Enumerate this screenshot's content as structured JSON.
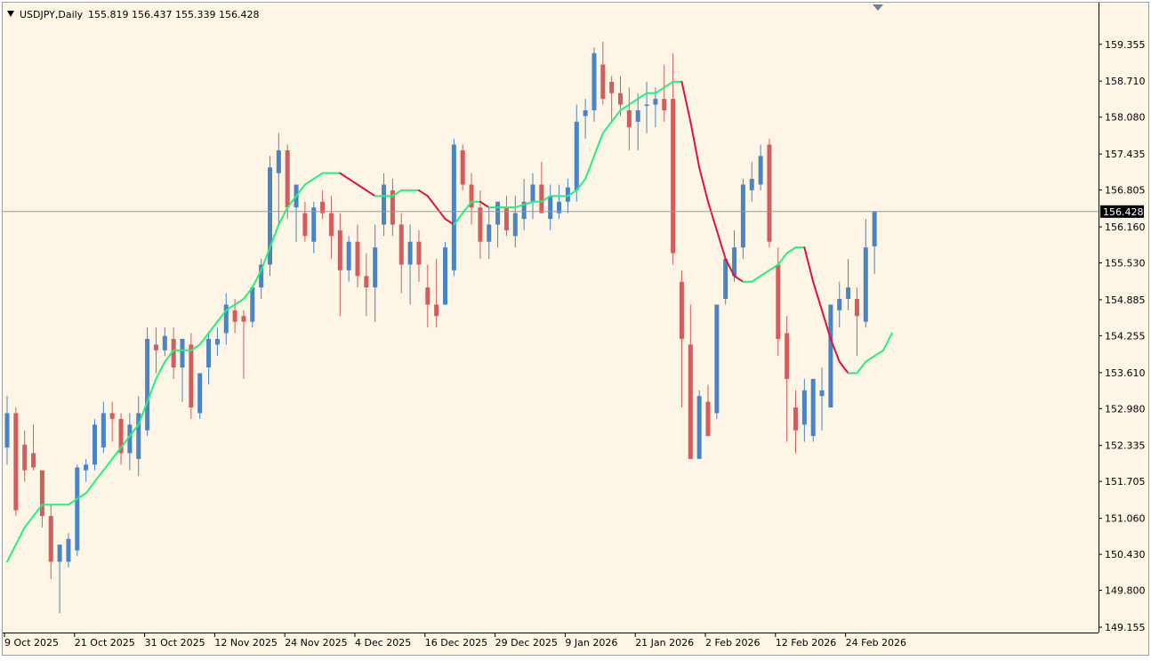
{
  "header": {
    "symbol_label": "USDJPY,Daily",
    "ohlc_label": "155.819 156.437 155.339 156.428"
  },
  "colors": {
    "background": "#fdf5e6",
    "bull": "#4a84c4",
    "bear": "#d45c5c",
    "ma_up": "#23f07a",
    "ma_down": "#dc143c",
    "price_line": "#8a9bb0",
    "price_tag": "#000000"
  },
  "chart_data": {
    "type": "candlestick",
    "title": "USDJPY,Daily",
    "ylim": [
      149.155,
      159.99
    ],
    "y_ticks": [
      "159.355",
      "158.710",
      "158.080",
      "157.435",
      "156.805",
      "156.160",
      "155.530",
      "154.885",
      "154.255",
      "153.610",
      "152.980",
      "152.335",
      "151.705",
      "151.060",
      "150.430",
      "149.800",
      "149.155"
    ],
    "x_ticks": [
      {
        "index": 0,
        "label": "9 Oct 2025"
      },
      {
        "index": 8,
        "label": "21 Oct 2025"
      },
      {
        "index": 16,
        "label": "31 Oct 2025"
      },
      {
        "index": 24,
        "label": "12 Nov 2025"
      },
      {
        "index": 32,
        "label": "24 Nov 2025"
      },
      {
        "index": 40,
        "label": "4 Dec 2025"
      },
      {
        "index": 48,
        "label": "16 Dec 2025"
      },
      {
        "index": 56,
        "label": "29 Dec 2025"
      },
      {
        "index": 64,
        "label": "9 Jan 2026"
      },
      {
        "index": 72,
        "label": "21 Jan 2026"
      },
      {
        "index": 80,
        "label": "2 Feb 2026"
      },
      {
        "index": 88,
        "label": "12 Feb 2026"
      },
      {
        "index": 96,
        "label": "24 Feb 2026"
      }
    ],
    "current_price": "156.428",
    "candles": [
      {
        "o": 152.3,
        "h": 153.2,
        "l": 152.0,
        "c": 152.9
      },
      {
        "o": 152.9,
        "h": 153.0,
        "l": 151.1,
        "c": 151.2
      },
      {
        "o": 152.35,
        "h": 152.6,
        "l": 151.7,
        "c": 151.9
      },
      {
        "o": 152.2,
        "h": 152.7,
        "l": 151.9,
        "c": 151.95
      },
      {
        "o": 151.9,
        "h": 151.9,
        "l": 150.9,
        "c": 151.1
      },
      {
        "o": 151.1,
        "h": 151.3,
        "l": 150.0,
        "c": 150.3
      },
      {
        "o": 150.3,
        "h": 150.5,
        "l": 149.4,
        "c": 150.6
      },
      {
        "o": 150.3,
        "h": 150.8,
        "l": 150.2,
        "c": 150.7
      },
      {
        "o": 150.5,
        "h": 152.0,
        "l": 150.4,
        "c": 151.95
      },
      {
        "o": 151.9,
        "h": 152.1,
        "l": 151.7,
        "c": 152.0
      },
      {
        "o": 152.0,
        "h": 152.8,
        "l": 151.9,
        "c": 152.7
      },
      {
        "o": 152.3,
        "h": 153.1,
        "l": 152.2,
        "c": 152.9
      },
      {
        "o": 152.9,
        "h": 153.1,
        "l": 152.4,
        "c": 152.8
      },
      {
        "o": 152.8,
        "h": 152.9,
        "l": 152.0,
        "c": 152.2
      },
      {
        "o": 152.2,
        "h": 152.9,
        "l": 151.9,
        "c": 152.7
      },
      {
        "o": 152.1,
        "h": 153.2,
        "l": 151.8,
        "c": 152.9
      },
      {
        "o": 152.6,
        "h": 154.4,
        "l": 152.5,
        "c": 154.2
      },
      {
        "o": 154.1,
        "h": 154.4,
        "l": 153.6,
        "c": 154.0
      },
      {
        "o": 154.0,
        "h": 154.4,
        "l": 153.9,
        "c": 154.25
      },
      {
        "o": 154.2,
        "h": 154.4,
        "l": 153.5,
        "c": 153.7
      },
      {
        "o": 153.7,
        "h": 154.1,
        "l": 153.1,
        "c": 154.2
      },
      {
        "o": 154.1,
        "h": 154.3,
        "l": 152.8,
        "c": 153.0
      },
      {
        "o": 152.9,
        "h": 153.5,
        "l": 152.8,
        "c": 153.6
      },
      {
        "o": 153.7,
        "h": 154.3,
        "l": 153.4,
        "c": 154.2
      },
      {
        "o": 154.1,
        "h": 154.4,
        "l": 153.9,
        "c": 154.2
      },
      {
        "o": 154.3,
        "h": 155.0,
        "l": 154.1,
        "c": 154.8
      },
      {
        "o": 154.7,
        "h": 154.9,
        "l": 154.3,
        "c": 154.5
      },
      {
        "o": 154.6,
        "h": 154.7,
        "l": 153.5,
        "c": 154.5
      },
      {
        "o": 154.5,
        "h": 155.1,
        "l": 154.4,
        "c": 155.1
      },
      {
        "o": 155.1,
        "h": 155.6,
        "l": 154.9,
        "c": 155.5
      },
      {
        "o": 155.5,
        "h": 157.4,
        "l": 155.3,
        "c": 157.2
      },
      {
        "o": 157.1,
        "h": 157.8,
        "l": 156.2,
        "c": 157.5
      },
      {
        "o": 157.5,
        "h": 157.6,
        "l": 156.3,
        "c": 156.5
      },
      {
        "o": 156.5,
        "h": 156.9,
        "l": 155.9,
        "c": 156.9
      },
      {
        "o": 156.4,
        "h": 156.6,
        "l": 155.9,
        "c": 156.0
      },
      {
        "o": 155.9,
        "h": 156.6,
        "l": 155.7,
        "c": 156.5
      },
      {
        "o": 156.6,
        "h": 156.8,
        "l": 156.3,
        "c": 156.4
      },
      {
        "o": 156.4,
        "h": 156.7,
        "l": 155.6,
        "c": 156.0
      },
      {
        "o": 156.1,
        "h": 156.4,
        "l": 154.6,
        "c": 155.4
      },
      {
        "o": 155.4,
        "h": 156.0,
        "l": 155.2,
        "c": 155.9
      },
      {
        "o": 155.9,
        "h": 156.2,
        "l": 155.1,
        "c": 155.3
      },
      {
        "o": 155.3,
        "h": 155.7,
        "l": 154.6,
        "c": 155.1
      },
      {
        "o": 155.1,
        "h": 156.2,
        "l": 154.5,
        "c": 155.8
      },
      {
        "o": 156.2,
        "h": 157.1,
        "l": 156.0,
        "c": 156.9
      },
      {
        "o": 156.8,
        "h": 157.0,
        "l": 156.0,
        "c": 156.2
      },
      {
        "o": 156.2,
        "h": 156.4,
        "l": 155.0,
        "c": 155.5
      },
      {
        "o": 155.5,
        "h": 156.2,
        "l": 154.8,
        "c": 155.9
      },
      {
        "o": 155.9,
        "h": 156.1,
        "l": 155.2,
        "c": 155.5
      },
      {
        "o": 155.1,
        "h": 155.5,
        "l": 154.4,
        "c": 154.8
      },
      {
        "o": 154.8,
        "h": 155.6,
        "l": 154.4,
        "c": 154.6
      },
      {
        "o": 154.8,
        "h": 155.9,
        "l": 154.8,
        "c": 155.8
      },
      {
        "o": 155.4,
        "h": 157.7,
        "l": 155.3,
        "c": 157.6
      },
      {
        "o": 157.5,
        "h": 157.6,
        "l": 156.8,
        "c": 156.9
      },
      {
        "o": 156.9,
        "h": 157.1,
        "l": 156.2,
        "c": 156.5
      },
      {
        "o": 156.5,
        "h": 156.8,
        "l": 155.6,
        "c": 155.9
      },
      {
        "o": 155.9,
        "h": 156.5,
        "l": 155.6,
        "c": 156.2
      },
      {
        "o": 156.2,
        "h": 156.6,
        "l": 155.8,
        "c": 156.6
      },
      {
        "o": 156.5,
        "h": 156.7,
        "l": 156.0,
        "c": 156.1
      },
      {
        "o": 156.0,
        "h": 156.7,
        "l": 155.8,
        "c": 156.4
      },
      {
        "o": 156.3,
        "h": 157.0,
        "l": 156.1,
        "c": 156.6
      },
      {
        "o": 156.6,
        "h": 157.1,
        "l": 156.3,
        "c": 156.9
      },
      {
        "o": 156.9,
        "h": 157.3,
        "l": 156.4,
        "c": 156.4
      },
      {
        "o": 156.3,
        "h": 156.9,
        "l": 156.1,
        "c": 156.7
      },
      {
        "o": 156.4,
        "h": 156.9,
        "l": 156.3,
        "c": 156.6
      },
      {
        "o": 156.6,
        "h": 157.0,
        "l": 156.4,
        "c": 156.85
      },
      {
        "o": 156.8,
        "h": 158.3,
        "l": 156.6,
        "c": 158.0
      },
      {
        "o": 158.1,
        "h": 158.4,
        "l": 157.7,
        "c": 158.2
      },
      {
        "o": 158.2,
        "h": 159.3,
        "l": 158.0,
        "c": 159.2
      },
      {
        "o": 159.0,
        "h": 159.4,
        "l": 158.3,
        "c": 158.4
      },
      {
        "o": 158.7,
        "h": 158.8,
        "l": 158.0,
        "c": 158.5
      },
      {
        "o": 158.5,
        "h": 158.8,
        "l": 158.1,
        "c": 158.3
      },
      {
        "o": 158.2,
        "h": 158.6,
        "l": 157.5,
        "c": 157.9
      },
      {
        "o": 158.0,
        "h": 158.5,
        "l": 157.5,
        "c": 158.2
      },
      {
        "o": 158.3,
        "h": 158.7,
        "l": 157.8,
        "c": 158.3
      },
      {
        "o": 158.3,
        "h": 158.6,
        "l": 157.9,
        "c": 158.4
      },
      {
        "o": 158.4,
        "h": 159.0,
        "l": 158.0,
        "c": 158.2
      },
      {
        "o": 158.4,
        "h": 159.2,
        "l": 155.5,
        "c": 155.7
      },
      {
        "o": 155.2,
        "h": 155.4,
        "l": 153.0,
        "c": 154.2
      },
      {
        "o": 154.1,
        "h": 154.8,
        "l": 152.1,
        "c": 152.1
      },
      {
        "o": 152.1,
        "h": 153.3,
        "l": 152.1,
        "c": 153.2
      },
      {
        "o": 153.1,
        "h": 153.4,
        "l": 152.5,
        "c": 152.5
      },
      {
        "o": 152.9,
        "h": 154.8,
        "l": 152.8,
        "c": 154.8
      },
      {
        "o": 154.9,
        "h": 155.6,
        "l": 154.8,
        "c": 155.6
      },
      {
        "o": 155.3,
        "h": 156.1,
        "l": 155.2,
        "c": 155.8
      },
      {
        "o": 155.8,
        "h": 157.0,
        "l": 155.6,
        "c": 156.9
      },
      {
        "o": 156.8,
        "h": 157.3,
        "l": 156.6,
        "c": 157.0
      },
      {
        "o": 156.9,
        "h": 157.6,
        "l": 156.8,
        "c": 157.4
      },
      {
        "o": 157.6,
        "h": 157.7,
        "l": 155.8,
        "c": 155.9
      },
      {
        "o": 155.5,
        "h": 155.8,
        "l": 153.9,
        "c": 154.2
      },
      {
        "o": 154.3,
        "h": 154.6,
        "l": 152.4,
        "c": 153.5
      },
      {
        "o": 153.0,
        "h": 153.3,
        "l": 152.2,
        "c": 152.6
      },
      {
        "o": 152.7,
        "h": 153.5,
        "l": 152.4,
        "c": 153.3
      },
      {
        "o": 152.5,
        "h": 153.5,
        "l": 152.4,
        "c": 153.5
      },
      {
        "o": 153.2,
        "h": 153.7,
        "l": 152.6,
        "c": 153.3
      },
      {
        "o": 153.0,
        "h": 154.8,
        "l": 153.0,
        "c": 154.8
      },
      {
        "o": 154.7,
        "h": 155.2,
        "l": 154.4,
        "c": 154.9
      },
      {
        "o": 154.9,
        "h": 155.6,
        "l": 154.7,
        "c": 155.1
      },
      {
        "o": 154.9,
        "h": 155.1,
        "l": 153.9,
        "c": 154.6
      },
      {
        "o": 154.5,
        "h": 156.3,
        "l": 154.4,
        "c": 155.8
      },
      {
        "o": 155.819,
        "h": 156.437,
        "l": 155.339,
        "c": 156.428
      }
    ],
    "ma": [
      150.3,
      150.6,
      150.9,
      151.1,
      151.3,
      151.3,
      151.3,
      151.3,
      151.4,
      151.5,
      151.7,
      151.9,
      152.1,
      152.3,
      152.5,
      152.7,
      153.1,
      153.5,
      153.8,
      154.0,
      154.0,
      154.0,
      154.1,
      154.3,
      154.5,
      154.7,
      154.8,
      154.9,
      155.1,
      155.4,
      155.8,
      156.2,
      156.5,
      156.7,
      156.9,
      157.0,
      157.1,
      157.1,
      157.1,
      157.0,
      156.9,
      156.8,
      156.7,
      156.7,
      156.7,
      156.8,
      156.8,
      156.8,
      156.7,
      156.5,
      156.3,
      156.2,
      156.4,
      156.6,
      156.6,
      156.5,
      156.5,
      156.5,
      156.5,
      156.55,
      156.6,
      156.6,
      156.7,
      156.7,
      156.7,
      156.8,
      157.0,
      157.4,
      157.8,
      158.0,
      158.2,
      158.3,
      158.4,
      158.5,
      158.5,
      158.6,
      158.7,
      158.7,
      158.0,
      157.2,
      156.6,
      156.1,
      155.6,
      155.3,
      155.2,
      155.2,
      155.3,
      155.4,
      155.5,
      155.7,
      155.8,
      155.8,
      155.2,
      154.7,
      154.2,
      153.8,
      153.6,
      153.6,
      153.8,
      153.9,
      154.0,
      154.3
    ]
  }
}
